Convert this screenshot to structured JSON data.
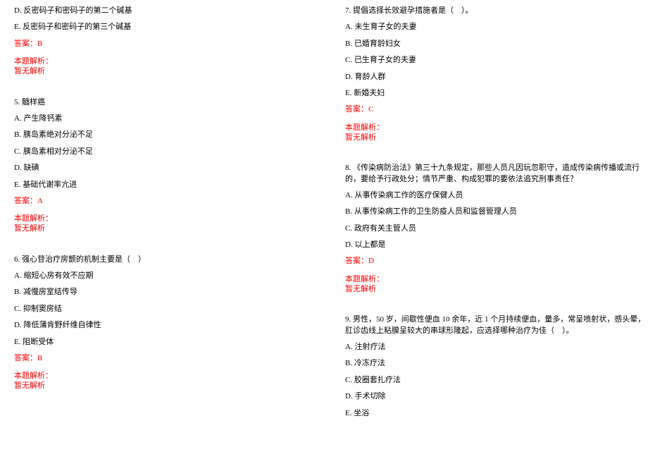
{
  "colors": {
    "text": "#000000",
    "answer": "#ff0000",
    "background": "#ffffff"
  },
  "typography": {
    "font_family": "SimSun",
    "font_size_pt": 8,
    "line_height": 1.4
  },
  "left_column": {
    "q4_tail": {
      "options": [
        "D. 反密码子和密码子的第二个碱基",
        "E. 反密码子和密码子的第三个碱基"
      ],
      "answer_label": "答案：B",
      "analysis_label": "本题解析：",
      "analysis_text": "暂无解析"
    },
    "q5": {
      "stem": "5. 髓样癌",
      "options": [
        "A. 产生降钙素",
        "B. 胰岛素绝对分泌不足",
        "C. 胰岛素相对分泌不足",
        "D. 缺碘",
        "E. 基础代谢率亢进"
      ],
      "answer_label": "答案：A",
      "analysis_label": "本题解析：",
      "analysis_text": "暂无解析"
    },
    "q6": {
      "stem": "6. 强心苷治疗房颤的机制主要是（　）",
      "options": [
        "A. 缩短心房有效不应期",
        "B. 减慢房室结传导",
        "C. 抑制窦房结",
        "D. 降低蒲肯野纤维自律性",
        "E. 阻断受体"
      ],
      "answer_label": "答案：B",
      "analysis_label": "本题解析：",
      "analysis_text": "暂无解析"
    }
  },
  "right_column": {
    "q7": {
      "stem": "7. 提倡选择长效避孕措施者是（　）。",
      "options": [
        "A. 未生育子女的夫妻",
        "B. 已婚育龄妇女",
        "C. 已生育子女的夫妻",
        "D. 育龄人群",
        "E. 新婚夫妇"
      ],
      "answer_label": "答案：C",
      "analysis_label": "本题解析：",
      "analysis_text": "暂无解析"
    },
    "q8": {
      "stem": "8. 《传染病防治法》第三十九条规定，那些人员凡因玩忽职守，造成传染病传播或流行的，要给予行政处分；情节严重、构成犯罪的要依法追究刑事责任？",
      "options": [
        "A. 从事传染病工作的医疗保健人员",
        "B. 从事传染病工作的卫生防疫人员和监督管理人员",
        "C. 政府有关主管人员",
        "D. 以上都是"
      ],
      "answer_label": "答案：D",
      "analysis_label": "本题解析：",
      "analysis_text": "暂无解析"
    },
    "q9": {
      "stem": "9. 男性，50 岁，间歇性便血 10 余年，近 1 个月持续便血，量多，常呈喷射状，感头晕，肛诊齿线上粘膜呈较大的串球形隆起，应选择哪种治疗为佳（　）。",
      "options": [
        "A. 注射疗法",
        "B. 冷冻疗法",
        "C. 胶圈套扎疗法",
        "D. 手术切除",
        "E. 坐浴"
      ]
    }
  }
}
